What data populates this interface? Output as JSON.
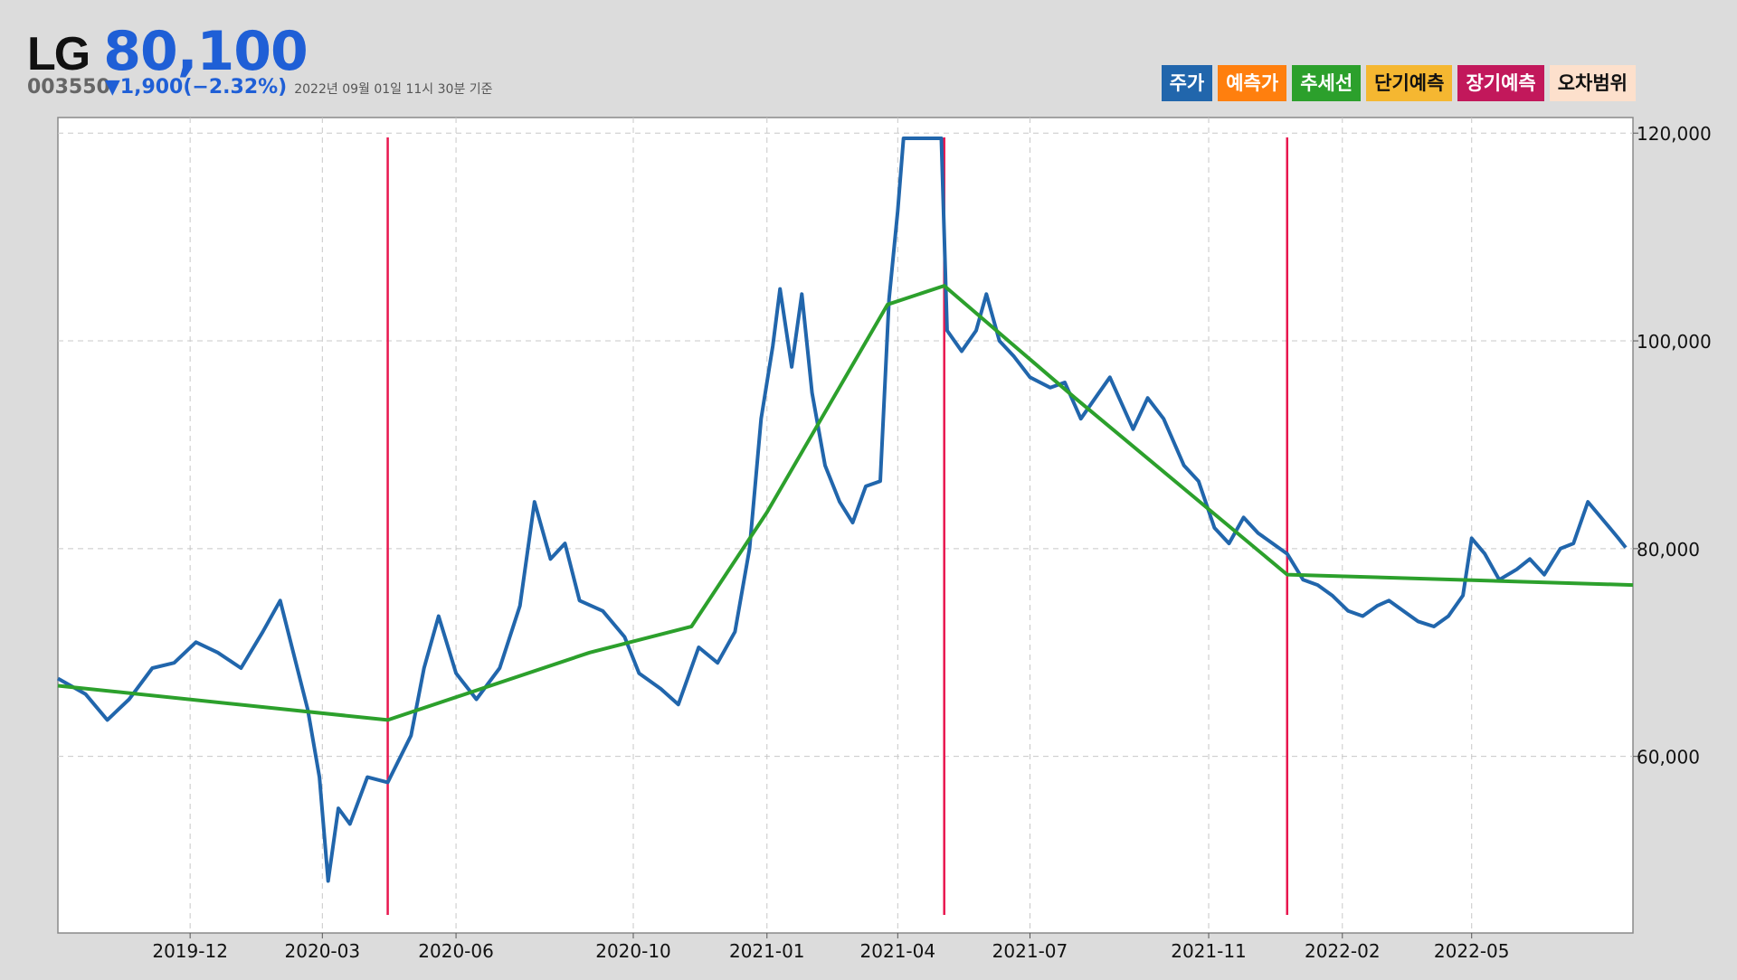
{
  "stock": {
    "name": "LG",
    "price": "80,100",
    "code": "003550",
    "change": "▼1,900(−2.32%)",
    "timestamp": "2022년 09월 01일 11시 30분 기준"
  },
  "legend": [
    {
      "label": "주가",
      "bg": "#2166ac",
      "color": "#ffffff"
    },
    {
      "label": "예측가",
      "bg": "#ff7f0e",
      "color": "#ffffff"
    },
    {
      "label": "추세선",
      "bg": "#2ca02c",
      "color": "#ffffff"
    },
    {
      "label": "단기예측",
      "bg": "#f5b731",
      "color": "#111111"
    },
    {
      "label": "장기예측",
      "bg": "#c2185b",
      "color": "#ffffff"
    },
    {
      "label": "오차범위",
      "bg": "#fde0cc",
      "color": "#111111"
    }
  ],
  "chart_data": {
    "type": "line",
    "y_ticks": [
      60000,
      80000,
      100000,
      120000
    ],
    "y_tick_labels": [
      "60,000",
      "80,000",
      "100,000",
      "120,000"
    ],
    "x_ticks": [
      "2019-12",
      "2020-03",
      "2020-06",
      "2020-10",
      "2021-01",
      "2021-04",
      "2021-07",
      "2021-11",
      "2022-02",
      "2022-05"
    ],
    "ylim": [
      43000,
      121500
    ],
    "grid": true,
    "legend_position": "top-right",
    "colors": {
      "price": "#2166ac",
      "trend": "#2ca02c",
      "event": "#e8174f",
      "grid": "#c8c8c8"
    },
    "series": [
      {
        "key": "price",
        "values": [
          [
            "2019-09-01",
            67500
          ],
          [
            "2019-09-20",
            66000
          ],
          [
            "2019-10-05",
            63500
          ],
          [
            "2019-10-20",
            65500
          ],
          [
            "2019-11-05",
            68500
          ],
          [
            "2019-11-20",
            69000
          ],
          [
            "2019-12-05",
            71000
          ],
          [
            "2019-12-20",
            70000
          ],
          [
            "2020-01-05",
            68500
          ],
          [
            "2020-01-20",
            72000
          ],
          [
            "2020-02-01",
            75000
          ],
          [
            "2020-02-10",
            70000
          ],
          [
            "2020-02-20",
            64500
          ],
          [
            "2020-02-28",
            58000
          ],
          [
            "2020-03-05",
            48000
          ],
          [
            "2020-03-12",
            55000
          ],
          [
            "2020-03-20",
            53500
          ],
          [
            "2020-04-01",
            58000
          ],
          [
            "2020-04-15",
            57500
          ],
          [
            "2020-05-01",
            62000
          ],
          [
            "2020-05-10",
            68500
          ],
          [
            "2020-05-20",
            73500
          ],
          [
            "2020-06-01",
            68000
          ],
          [
            "2020-06-15",
            65500
          ],
          [
            "2020-07-01",
            68500
          ],
          [
            "2020-07-15",
            74500
          ],
          [
            "2020-07-25",
            84500
          ],
          [
            "2020-08-05",
            79000
          ],
          [
            "2020-08-15",
            80500
          ],
          [
            "2020-08-25",
            75000
          ],
          [
            "2020-09-10",
            74000
          ],
          [
            "2020-09-25",
            71500
          ],
          [
            "2020-10-05",
            68000
          ],
          [
            "2020-10-20",
            66500
          ],
          [
            "2020-11-01",
            65000
          ],
          [
            "2020-11-15",
            70500
          ],
          [
            "2020-11-28",
            69000
          ],
          [
            "2020-12-10",
            72000
          ],
          [
            "2020-12-20",
            80000
          ],
          [
            "2020-12-28",
            92500
          ],
          [
            "2021-01-05",
            99500
          ],
          [
            "2021-01-10",
            105000
          ],
          [
            "2021-01-18",
            97500
          ],
          [
            "2021-01-25",
            104500
          ],
          [
            "2021-02-01",
            95000
          ],
          [
            "2021-02-10",
            88000
          ],
          [
            "2021-02-20",
            84500
          ],
          [
            "2021-03-01",
            82500
          ],
          [
            "2021-03-10",
            86000
          ],
          [
            "2021-03-20",
            86500
          ],
          [
            "2021-03-26",
            104000
          ],
          [
            "2021-04-01",
            112500
          ],
          [
            "2021-04-05",
            119500
          ],
          [
            "2021-05-01",
            119500
          ],
          [
            "2021-05-05",
            101000
          ],
          [
            "2021-05-15",
            99000
          ],
          [
            "2021-05-25",
            101000
          ],
          [
            "2021-06-01",
            104500
          ],
          [
            "2021-06-10",
            100000
          ],
          [
            "2021-06-20",
            98500
          ],
          [
            "2021-07-01",
            96500
          ],
          [
            "2021-07-15",
            95500
          ],
          [
            "2021-07-25",
            96000
          ],
          [
            "2021-08-05",
            92500
          ],
          [
            "2021-08-15",
            94500
          ],
          [
            "2021-08-25",
            96500
          ],
          [
            "2021-09-10",
            91500
          ],
          [
            "2021-09-20",
            94500
          ],
          [
            "2021-10-01",
            92500
          ],
          [
            "2021-10-15",
            88000
          ],
          [
            "2021-10-25",
            86500
          ],
          [
            "2021-11-05",
            82000
          ],
          [
            "2021-11-15",
            80500
          ],
          [
            "2021-11-25",
            83000
          ],
          [
            "2021-12-05",
            81500
          ],
          [
            "2021-12-15",
            80500
          ],
          [
            "2021-12-25",
            79500
          ],
          [
            "2022-01-05",
            77000
          ],
          [
            "2022-01-15",
            76500
          ],
          [
            "2022-01-25",
            75500
          ],
          [
            "2022-02-05",
            74000
          ],
          [
            "2022-02-15",
            73500
          ],
          [
            "2022-02-25",
            74500
          ],
          [
            "2022-03-05",
            75000
          ],
          [
            "2022-03-15",
            74000
          ],
          [
            "2022-03-25",
            73000
          ],
          [
            "2022-04-05",
            72500
          ],
          [
            "2022-04-15",
            73500
          ],
          [
            "2022-04-25",
            75500
          ],
          [
            "2022-05-01",
            81000
          ],
          [
            "2022-05-10",
            79500
          ],
          [
            "2022-05-20",
            77000
          ],
          [
            "2022-06-01",
            78000
          ],
          [
            "2022-06-10",
            79000
          ],
          [
            "2022-06-20",
            77500
          ],
          [
            "2022-07-01",
            80000
          ],
          [
            "2022-07-10",
            80500
          ],
          [
            "2022-07-20",
            84500
          ],
          [
            "2022-08-01",
            82500
          ],
          [
            "2022-08-10",
            81000
          ],
          [
            "2022-08-15",
            80100
          ]
        ]
      },
      {
        "key": "trend",
        "values": [
          [
            "2019-09-01",
            66800
          ],
          [
            "2020-04-15",
            63500
          ],
          [
            "2020-09-01",
            70000
          ],
          [
            "2020-11-10",
            72500
          ],
          [
            "2021-01-01",
            83500
          ],
          [
            "2021-03-25",
            103500
          ],
          [
            "2021-05-03",
            105300
          ],
          [
            "2021-08-01",
            94500
          ],
          [
            "2021-12-25",
            77500
          ],
          [
            "2022-08-20",
            76500
          ]
        ]
      }
    ],
    "event_dates": [
      "2020-04-15",
      "2021-05-03",
      "2021-12-25"
    ]
  }
}
